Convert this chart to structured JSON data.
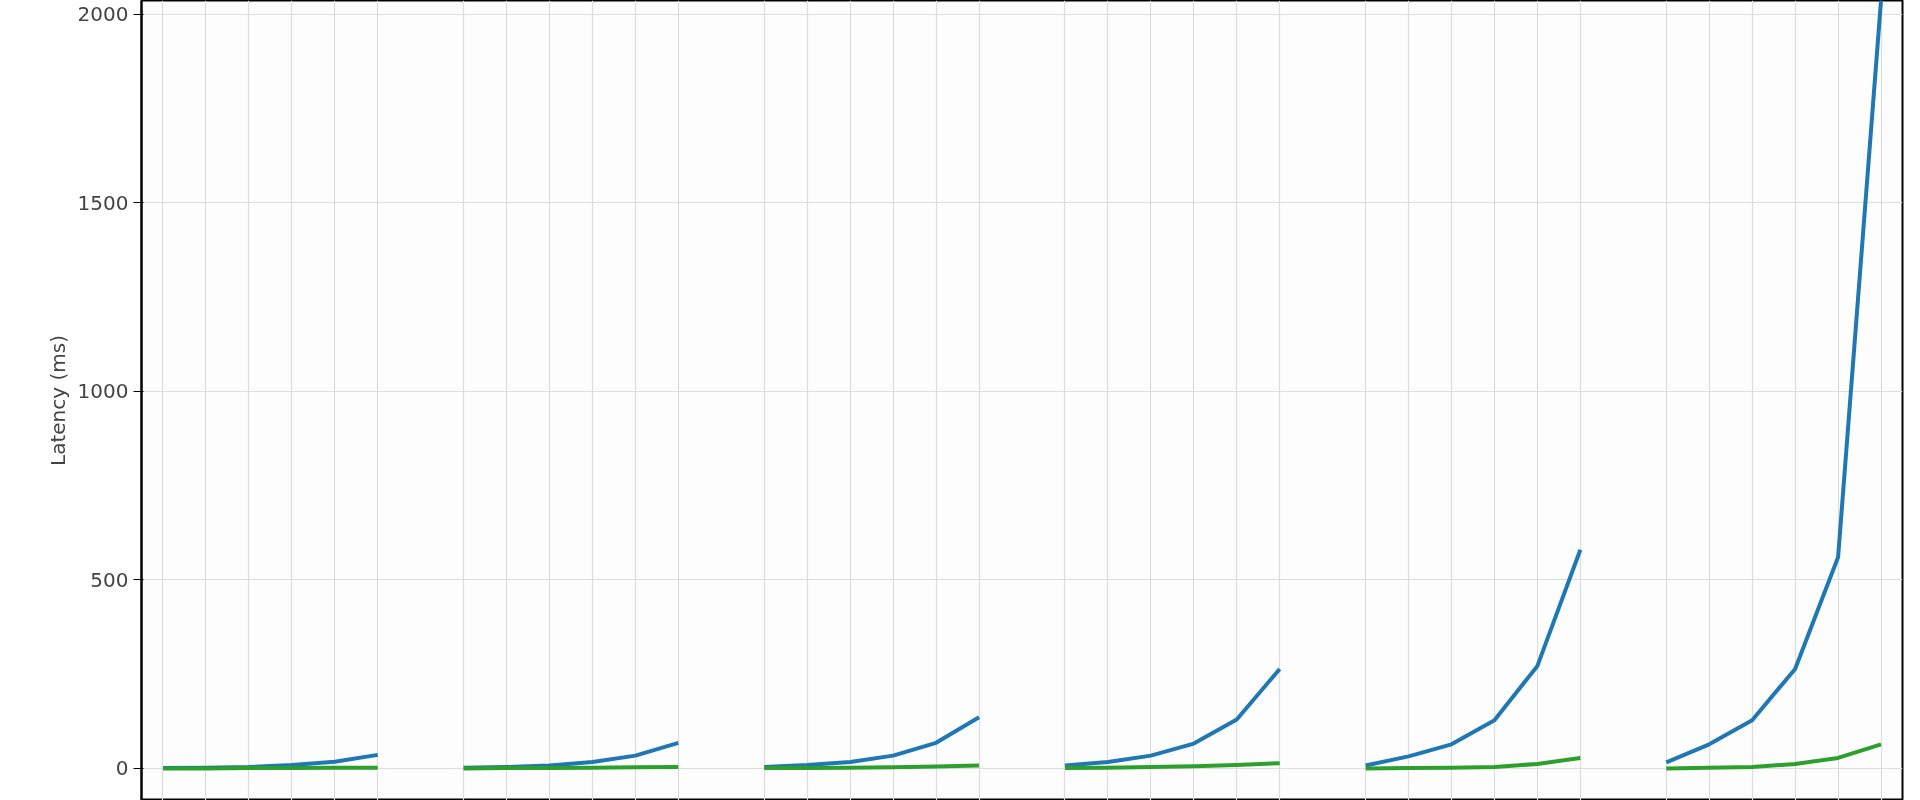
{
  "chart_data": {
    "type": "line",
    "ylabel": "Latency (ms)",
    "ylim": [
      -85,
      2037
    ],
    "yticks": [
      0,
      500,
      1000,
      1500,
      2000
    ],
    "categories": [
      null,
      null,
      null,
      null,
      null,
      null,
      null,
      null,
      null,
      null,
      null,
      null,
      null,
      null,
      null,
      null,
      null,
      null,
      null,
      null,
      null,
      null,
      null,
      null,
      null,
      null,
      null,
      null,
      null,
      null,
      null,
      null,
      null,
      null,
      null,
      null,
      null,
      null,
      null,
      null,
      null
    ],
    "tick_labels": "y",
    "grid": true,
    "line_style": "solid",
    "marker": "none",
    "series": [
      {
        "color": "#1f77b4",
        "values": [
          1,
          2,
          4,
          9,
          18,
          36,
          null,
          null,
          null,
          null,
          null,
          null,
          null,
          null,
          null,
          null,
          null,
          null,
          null,
          null,
          null,
          null,
          null,
          null,
          null,
          null,
          null,
          null,
          null,
          null,
          null,
          null,
          null,
          null,
          null,
          null,
          null,
          null,
          null,
          null,
          null
        ]
      },
      {
        "color": "#2ca02c",
        "values": [
          0,
          0,
          1,
          1,
          2,
          2,
          null,
          null,
          null,
          null,
          null,
          null,
          null,
          null,
          null,
          null,
          null,
          null,
          null,
          null,
          null,
          null,
          null,
          null,
          null,
          null,
          null,
          null,
          null,
          null,
          null,
          null,
          null,
          null,
          null,
          null,
          null,
          null,
          null,
          null,
          null
        ]
      },
      {
        "color": "#1f77b4",
        "values": [
          null,
          null,
          null,
          null,
          null,
          null,
          null,
          2,
          4,
          8,
          17,
          34,
          68,
          null,
          null,
          null,
          null,
          null,
          null,
          null,
          null,
          null,
          null,
          null,
          null,
          null,
          null,
          null,
          null,
          null,
          null,
          null,
          null,
          null,
          null,
          null,
          null,
          null,
          null,
          null,
          null
        ]
      },
      {
        "color": "#2ca02c",
        "values": [
          null,
          null,
          null,
          null,
          null,
          null,
          null,
          0,
          1,
          1,
          2,
          3,
          4,
          null,
          null,
          null,
          null,
          null,
          null,
          null,
          null,
          null,
          null,
          null,
          null,
          null,
          null,
          null,
          null,
          null,
          null,
          null,
          null,
          null,
          null,
          null,
          null,
          null,
          null,
          null,
          null
        ]
      },
      {
        "color": "#1f77b4",
        "values": [
          null,
          null,
          null,
          null,
          null,
          null,
          null,
          null,
          null,
          null,
          null,
          null,
          null,
          null,
          4,
          9,
          17,
          34,
          68,
          136,
          null,
          null,
          null,
          null,
          null,
          null,
          null,
          null,
          null,
          null,
          null,
          null,
          null,
          null,
          null,
          null,
          null,
          null,
          null,
          null,
          null
        ]
      },
      {
        "color": "#2ca02c",
        "values": [
          null,
          null,
          null,
          null,
          null,
          null,
          null,
          null,
          null,
          null,
          null,
          null,
          null,
          null,
          1,
          1,
          2,
          3,
          5,
          8,
          null,
          null,
          null,
          null,
          null,
          null,
          null,
          null,
          null,
          null,
          null,
          null,
          null,
          null,
          null,
          null,
          null,
          null,
          null,
          null,
          null
        ]
      },
      {
        "color": "#1f77b4",
        "values": [
          null,
          null,
          null,
          null,
          null,
          null,
          null,
          null,
          null,
          null,
          null,
          null,
          null,
          null,
          null,
          null,
          null,
          null,
          null,
          null,
          null,
          8,
          17,
          34,
          66,
          130,
          264,
          null,
          null,
          null,
          null,
          null,
          null,
          null,
          null,
          null,
          null,
          null,
          null,
          null,
          null
        ]
      },
      {
        "color": "#2ca02c",
        "values": [
          null,
          null,
          null,
          null,
          null,
          null,
          null,
          null,
          null,
          null,
          null,
          null,
          null,
          null,
          null,
          null,
          null,
          null,
          null,
          null,
          null,
          1,
          2,
          4,
          6,
          9,
          14,
          null,
          null,
          null,
          null,
          null,
          null,
          null,
          null,
          null,
          null,
          null,
          null,
          null,
          null
        ]
      },
      {
        "color": "#1f77b4",
        "values": [
          null,
          null,
          null,
          null,
          null,
          null,
          null,
          null,
          null,
          null,
          null,
          null,
          null,
          null,
          null,
          null,
          null,
          null,
          null,
          null,
          null,
          null,
          null,
          null,
          null,
          null,
          null,
          null,
          8,
          32,
          64,
          128,
          272,
          580,
          null,
          null,
          null,
          null,
          null,
          null,
          null
        ]
      },
      {
        "color": "#2ca02c",
        "values": [
          null,
          null,
          null,
          null,
          null,
          null,
          null,
          null,
          null,
          null,
          null,
          null,
          null,
          null,
          null,
          null,
          null,
          null,
          null,
          null,
          null,
          null,
          null,
          null,
          null,
          null,
          null,
          null,
          0,
          1,
          2,
          4,
          12,
          28,
          null,
          null,
          null,
          null,
          null,
          null,
          null
        ]
      },
      {
        "color": "#1f77b4",
        "values": [
          null,
          null,
          null,
          null,
          null,
          null,
          null,
          null,
          null,
          null,
          null,
          null,
          null,
          null,
          null,
          null,
          null,
          null,
          null,
          null,
          null,
          null,
          null,
          null,
          null,
          null,
          null,
          null,
          null,
          null,
          null,
          null,
          null,
          null,
          null,
          16,
          64,
          128,
          264,
          560,
          2037
        ]
      },
      {
        "color": "#2ca02c",
        "values": [
          null,
          null,
          null,
          null,
          null,
          null,
          null,
          null,
          null,
          null,
          null,
          null,
          null,
          null,
          null,
          null,
          null,
          null,
          null,
          null,
          null,
          null,
          null,
          null,
          null,
          null,
          null,
          null,
          null,
          null,
          null,
          null,
          null,
          null,
          null,
          0,
          2,
          4,
          12,
          28,
          64
        ]
      }
    ]
  }
}
